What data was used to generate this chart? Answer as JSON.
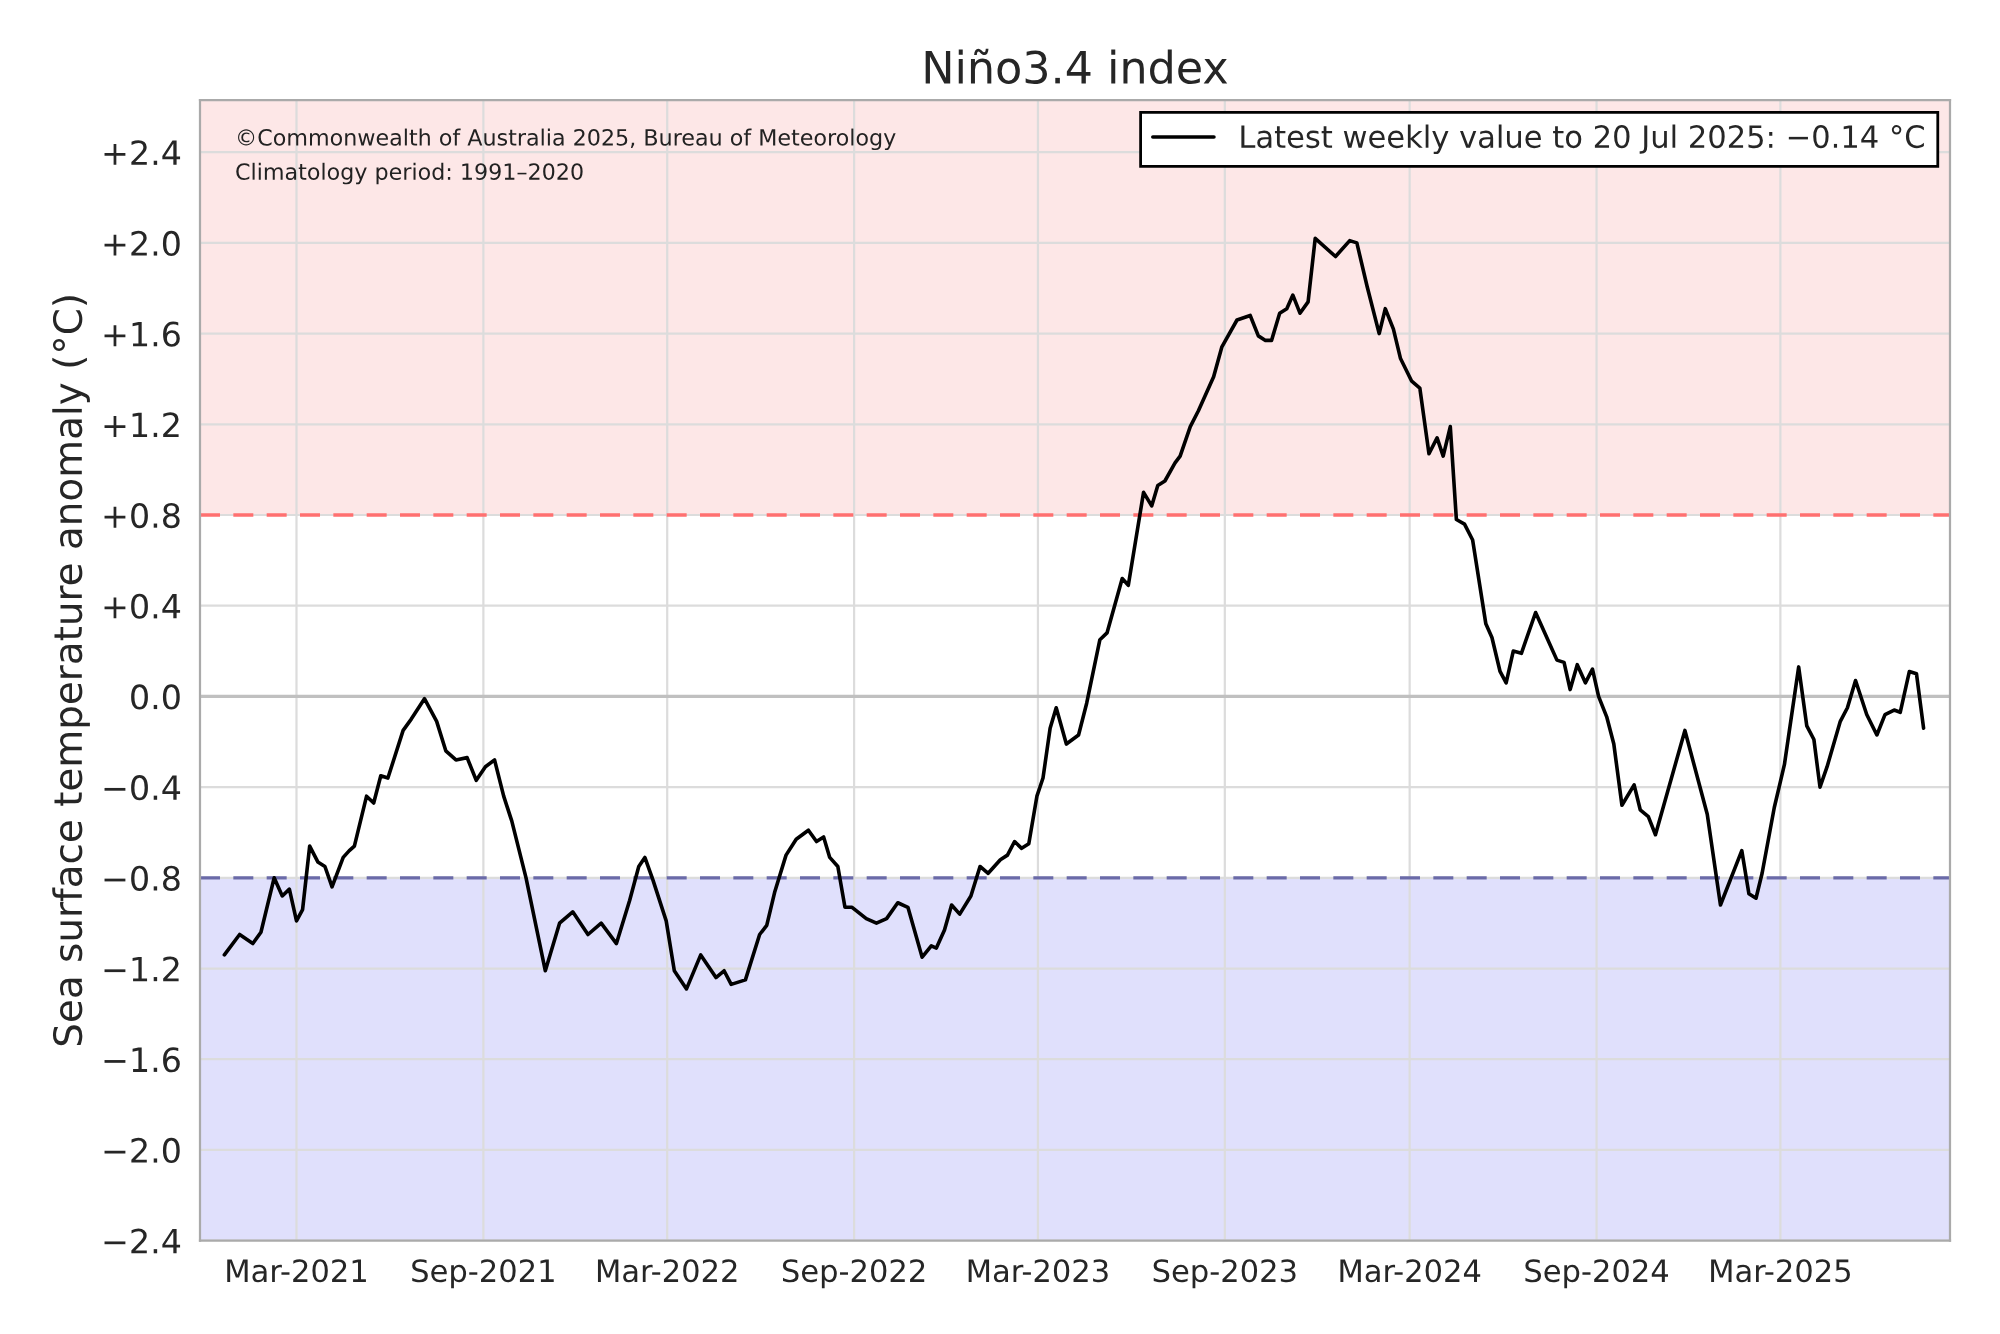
{
  "chart_data": {
    "type": "line",
    "title": "Niño3.4 index",
    "ylabel": "Sea surface temperature anomaly (°C)",
    "annotations": [
      "©Commonwealth of Australia 2025, Bureau of Meteorology",
      "Climatology period: 1991–2020"
    ],
    "x": [
      "2020-12-20",
      "2021-01-04",
      "2021-01-17",
      "2021-01-25",
      "2021-02-07",
      "2021-02-15",
      "2021-02-22",
      "2021-03-01",
      "2021-03-07",
      "2021-03-14",
      "2021-03-22",
      "2021-03-29",
      "2021-04-05",
      "2021-04-16",
      "2021-04-22",
      "2021-04-27",
      "2021-05-09",
      "2021-05-16",
      "2021-05-23",
      "2021-05-30",
      "2021-06-14",
      "2021-06-22",
      "2021-07-05",
      "2021-07-17",
      "2021-07-26",
      "2021-08-05",
      "2021-08-16",
      "2021-08-25",
      "2021-09-03",
      "2021-09-12",
      "2021-09-21",
      "2021-09-29",
      "2021-10-13",
      "2021-11-01",
      "2021-11-15",
      "2021-11-28",
      "2021-12-13",
      "2021-12-26",
      "2022-01-10",
      "2022-01-23",
      "2022-02-01",
      "2022-02-07",
      "2022-02-15",
      "2022-02-28",
      "2022-03-08",
      "2022-03-20",
      "2022-04-03",
      "2022-04-18",
      "2022-04-26",
      "2022-05-03",
      "2022-05-17",
      "2022-05-31",
      "2022-06-07",
      "2022-06-15",
      "2022-06-26",
      "2022-07-06",
      "2022-07-18",
      "2022-07-26",
      "2022-08-02",
      "2022-08-08",
      "2022-08-16",
      "2022-08-23",
      "2022-08-30",
      "2022-09-13",
      "2022-09-23",
      "2022-10-03",
      "2022-10-14",
      "2022-10-24",
      "2022-11-07",
      "2022-11-16",
      "2022-11-21",
      "2022-11-29",
      "2022-12-06",
      "2022-12-14",
      "2022-12-25",
      "2023-01-03",
      "2023-01-11",
      "2023-01-23",
      "2023-01-30",
      "2023-02-06",
      "2023-02-13",
      "2023-02-20",
      "2023-02-28",
      "2023-03-06",
      "2023-03-13",
      "2023-03-19",
      "2023-03-29",
      "2023-04-10",
      "2023-04-18",
      "2023-05-01",
      "2023-05-08",
      "2023-05-23",
      "2023-05-29",
      "2023-06-13",
      "2023-06-21",
      "2023-06-27",
      "2023-07-04",
      "2023-07-14",
      "2023-07-19",
      "2023-07-29",
      "2023-08-06",
      "2023-08-21",
      "2023-08-29",
      "2023-09-13",
      "2023-09-26",
      "2023-10-04",
      "2023-10-11",
      "2023-10-17",
      "2023-10-25",
      "2023-11-01",
      "2023-11-07",
      "2023-11-14",
      "2023-11-22",
      "2023-11-29",
      "2023-12-19",
      "2024-01-02",
      "2024-01-09",
      "2024-01-19",
      "2024-01-31",
      "2024-02-06",
      "2024-02-14",
      "2024-02-21",
      "2024-03-03",
      "2024-03-11",
      "2024-03-20",
      "2024-03-28",
      "2024-04-03",
      "2024-04-10",
      "2024-04-16",
      "2024-04-24",
      "2024-05-02",
      "2024-05-15",
      "2024-05-21",
      "2024-05-29",
      "2024-06-04",
      "2024-06-11",
      "2024-06-19",
      "2024-07-03",
      "2024-07-16",
      "2024-07-24",
      "2024-07-31",
      "2024-08-06",
      "2024-08-13",
      "2024-08-21",
      "2024-08-28",
      "2024-09-03",
      "2024-09-11",
      "2024-09-18",
      "2024-09-26",
      "2024-10-08",
      "2024-10-14",
      "2024-10-22",
      "2024-10-29",
      "2024-11-27",
      "2024-12-19",
      "2025-01-01",
      "2025-01-22",
      "2025-01-29",
      "2025-02-05",
      "2025-02-11",
      "2025-02-23",
      "2025-03-05",
      "2025-03-19",
      "2025-03-27",
      "2025-04-03",
      "2025-04-09",
      "2025-04-16",
      "2025-04-29",
      "2025-05-06",
      "2025-05-14",
      "2025-05-25",
      "2025-06-04",
      "2025-06-12",
      "2025-06-21",
      "2025-06-27",
      "2025-07-06",
      "2025-07-13",
      "2025-07-20"
    ],
    "series": [
      {
        "name": "Latest weekly value to 20 Jul 2025: −0.14 °C",
        "color": "#000000",
        "values": [
          -1.14,
          -1.05,
          -1.09,
          -1.04,
          -0.8,
          -0.88,
          -0.85,
          -0.99,
          -0.94,
          -0.66,
          -0.73,
          -0.75,
          -0.84,
          -0.71,
          -0.68,
          -0.66,
          -0.44,
          -0.47,
          -0.35,
          -0.36,
          -0.15,
          -0.1,
          -0.01,
          -0.11,
          -0.24,
          -0.28,
          -0.27,
          -0.37,
          -0.31,
          -0.28,
          -0.44,
          -0.55,
          -0.8,
          -1.21,
          -1.0,
          -0.95,
          -1.05,
          -1.0,
          -1.09,
          -0.9,
          -0.75,
          -0.71,
          -0.81,
          -0.99,
          -1.21,
          -1.29,
          -1.14,
          -1.24,
          -1.21,
          -1.27,
          -1.25,
          -1.05,
          -1.01,
          -0.86,
          -0.7,
          -0.63,
          -0.59,
          -0.64,
          -0.62,
          -0.71,
          -0.75,
          -0.93,
          -0.93,
          -0.98,
          -1.0,
          -0.98,
          -0.91,
          -0.93,
          -1.15,
          -1.1,
          -1.11,
          -1.03,
          -0.92,
          -0.96,
          -0.88,
          -0.75,
          -0.78,
          -0.72,
          -0.7,
          -0.64,
          -0.67,
          -0.65,
          -0.44,
          -0.36,
          -0.14,
          -0.05,
          -0.21,
          -0.17,
          -0.03,
          0.25,
          0.28,
          0.52,
          0.49,
          0.9,
          0.84,
          0.93,
          0.95,
          1.03,
          1.06,
          1.19,
          1.26,
          1.41,
          1.54,
          1.66,
          1.68,
          1.59,
          1.57,
          1.57,
          1.69,
          1.71,
          1.77,
          1.69,
          1.74,
          2.02,
          1.94,
          2.01,
          2.0,
          1.81,
          1.6,
          1.71,
          1.62,
          1.49,
          1.39,
          1.36,
          1.07,
          1.14,
          1.06,
          1.19,
          0.78,
          0.76,
          0.69,
          0.32,
          0.26,
          0.11,
          0.06,
          0.2,
          0.19,
          0.37,
          0.24,
          0.16,
          0.15,
          0.03,
          0.14,
          0.06,
          0.12,
          0.0,
          -0.09,
          -0.21,
          -0.48,
          -0.39,
          -0.5,
          -0.53,
          -0.61,
          -0.15,
          -0.52,
          -0.92,
          -0.68,
          -0.87,
          -0.89,
          -0.78,
          -0.49,
          -0.3,
          0.13,
          -0.13,
          -0.19,
          -0.4,
          -0.31,
          -0.11,
          -0.05,
          0.07,
          -0.08,
          -0.17,
          -0.08,
          -0.06,
          -0.07,
          0.11,
          0.1,
          -0.14
        ]
      }
    ],
    "xlim": [
      "2020-11-26",
      "2025-08-15"
    ],
    "xticks": [
      {
        "value": "2021-03-01",
        "label": "Mar-2021"
      },
      {
        "value": "2021-09-01",
        "label": "Sep-2021"
      },
      {
        "value": "2022-03-01",
        "label": "Mar-2022"
      },
      {
        "value": "2022-09-01",
        "label": "Sep-2022"
      },
      {
        "value": "2023-03-01",
        "label": "Mar-2023"
      },
      {
        "value": "2023-09-01",
        "label": "Sep-2023"
      },
      {
        "value": "2024-03-01",
        "label": "Mar-2024"
      },
      {
        "value": "2024-09-01",
        "label": "Sep-2024"
      },
      {
        "value": "2025-03-01",
        "label": "Mar-2025"
      }
    ],
    "ylim": [
      -2.4,
      2.63
    ],
    "yticks": [
      {
        "value": -2.4,
        "label": "−2.4"
      },
      {
        "value": -2.0,
        "label": "−2.0"
      },
      {
        "value": -1.6,
        "label": "−1.6"
      },
      {
        "value": -1.2,
        "label": "−1.2"
      },
      {
        "value": -0.8,
        "label": "−0.8"
      },
      {
        "value": -0.4,
        "label": "−0.4"
      },
      {
        "value": 0.0,
        "label": "0.0"
      },
      {
        "value": 0.4,
        "label": "+0.4"
      },
      {
        "value": 0.8,
        "label": "+0.8"
      },
      {
        "value": 1.2,
        "label": "+1.2"
      },
      {
        "value": 1.6,
        "label": "+1.6"
      },
      {
        "value": 2.0,
        "label": "+2.0"
      },
      {
        "value": 2.4,
        "label": "+2.4"
      }
    ],
    "bands": [
      {
        "axis": "y",
        "from": 0.8,
        "to": 2.63,
        "color": "#fde7e7"
      },
      {
        "axis": "y",
        "from": -2.4,
        "to": -0.8,
        "color": "#e0e0fc"
      }
    ],
    "ref_lines": [
      {
        "axis": "y",
        "value": 0.8,
        "color": "#ff7070",
        "line_style": "dashed"
      },
      {
        "axis": "y",
        "value": -0.8,
        "color": "#6a6aa8",
        "line_style": "dashed"
      },
      {
        "axis": "y",
        "value": 0.0,
        "color": "#c0c0c0",
        "line_style": "solid"
      }
    ],
    "grid": true,
    "legend": "top right",
    "marker": "none",
    "line_style": "solid"
  }
}
